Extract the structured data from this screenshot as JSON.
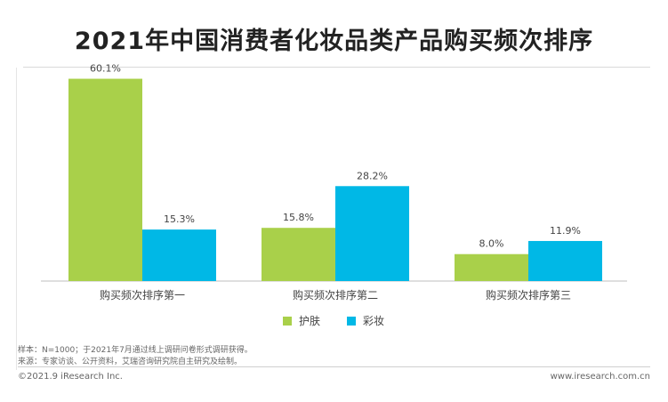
{
  "title": "2021年中国消费者化妆品类产品购买频次排序",
  "chart_data": {
    "type": "bar",
    "title": "2021年中国消费者化妆品类产品购买频次排序",
    "categories": [
      "购买频次排序第一",
      "购买频次排序第二",
      "购买频次排序第三"
    ],
    "series": [
      {
        "name": "护肤",
        "values": [
          60.1,
          15.8,
          8.0
        ],
        "labels": [
          "60.1%",
          "15.8%",
          "8.0%"
        ],
        "color": "#a9d04a"
      },
      {
        "name": "彩妆",
        "values": [
          15.3,
          28.2,
          11.9
        ],
        "labels": [
          "15.3%",
          "28.2%",
          "11.9%"
        ],
        "color": "#00b8e6"
      }
    ],
    "ylim": [
      0,
      65
    ],
    "unit": "%",
    "grid": false,
    "legend_position": "bottom"
  },
  "notes": {
    "sample": "样本：N=1000；于2021年7月通过线上调研问卷形式调研获得。",
    "source": "来源：专家访谈、公开资料，艾瑞咨询研究院自主研究及绘制。"
  },
  "footer": {
    "copyright": "©2021.9 iResearch Inc.",
    "website": "www.iresearch.com.cn"
  }
}
